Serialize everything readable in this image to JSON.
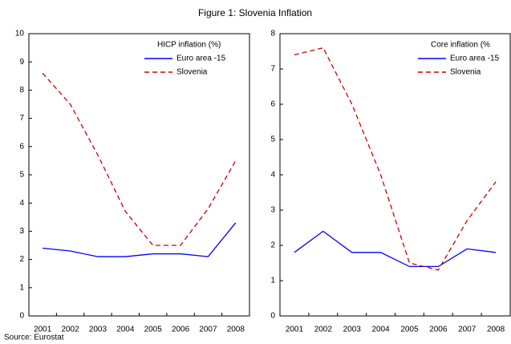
{
  "title": "Figure 1: Slovenia Inflation",
  "source": "Source: Eurostat",
  "chart_data": [
    {
      "type": "line",
      "legend_title": "HICP inflation (%)",
      "categories": [
        "2001",
        "2002",
        "2003",
        "2004",
        "2005",
        "2006",
        "2007",
        "2008"
      ],
      "series": [
        {
          "name": "Euro area -15",
          "color": "#0000ff",
          "style": "solid",
          "values": [
            2.4,
            2.3,
            2.1,
            2.1,
            2.2,
            2.2,
            2.1,
            3.3
          ]
        },
        {
          "name": "Slovenia",
          "color": "#cc0000",
          "style": "dashed",
          "values": [
            8.6,
            7.5,
            5.7,
            3.7,
            2.5,
            2.5,
            3.8,
            5.5
          ]
        }
      ],
      "ylim": [
        0,
        10
      ],
      "yticks": [
        0,
        1,
        2,
        3,
        4,
        5,
        6,
        7,
        8,
        9,
        10
      ]
    },
    {
      "type": "line",
      "legend_title": "Core inflation (%",
      "categories": [
        "2001",
        "2002",
        "2003",
        "2004",
        "2005",
        "2006",
        "2007",
        "2008"
      ],
      "series": [
        {
          "name": "Euro area -15",
          "color": "#0000ff",
          "style": "solid",
          "values": [
            1.8,
            2.4,
            1.8,
            1.8,
            1.4,
            1.4,
            1.9,
            1.8
          ]
        },
        {
          "name": "Slovenia",
          "color": "#cc0000",
          "style": "dashed",
          "values": [
            7.4,
            7.6,
            6.0,
            4.0,
            1.5,
            1.3,
            2.7,
            3.8
          ]
        }
      ],
      "ylim": [
        0,
        8
      ],
      "yticks": [
        0,
        1,
        2,
        3,
        4,
        5,
        6,
        7,
        8
      ]
    }
  ]
}
